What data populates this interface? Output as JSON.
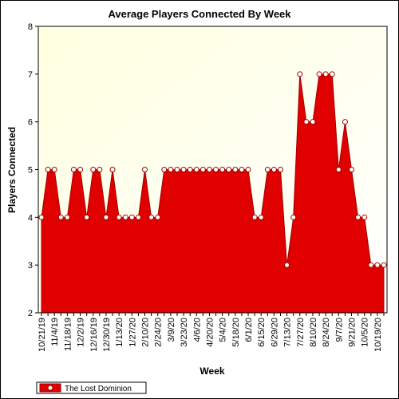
{
  "chart_data": {
    "type": "area",
    "title": "Average Players Connected By Week",
    "xlabel": "Week",
    "ylabel": "Players Connected",
    "ylim": [
      2,
      8
    ],
    "yticks": [
      2,
      3,
      4,
      5,
      6,
      7,
      8
    ],
    "grid": false,
    "legend_position": "bottom-left",
    "colors": {
      "fill": "#e00000",
      "line": "#a00000",
      "plot_bg_light": "#ffffe0",
      "marker_fill": "#ffffff"
    },
    "xtick_labels": [
      "10/21/19",
      "11/4/19",
      "11/18/19",
      "12/2/19",
      "12/16/19",
      "12/30/19",
      "1/13/20",
      "1/27/20",
      "2/10/20",
      "2/24/20",
      "3/9/20",
      "3/23/20",
      "4/6/20",
      "4/20/20",
      "5/4/20",
      "5/18/20",
      "6/1/20",
      "6/15/20",
      "6/29/20",
      "7/13/20",
      "7/27/20",
      "8/10/20",
      "8/24/20",
      "9/7/20",
      "9/21/20",
      "10/5/20",
      "10/19/20"
    ],
    "series": [
      {
        "name": "The Lost Dominion",
        "values": [
          4,
          5,
          5,
          4,
          4,
          5,
          5,
          4,
          5,
          5,
          4,
          5,
          4,
          4,
          4,
          4,
          5,
          4,
          4,
          5,
          5,
          5,
          5,
          5,
          5,
          5,
          5,
          5,
          5,
          5,
          5,
          5,
          5,
          4,
          4,
          5,
          5,
          5,
          3,
          4,
          7,
          6,
          6,
          7,
          7,
          7,
          5,
          6,
          5,
          4,
          4,
          3,
          3,
          3
        ]
      }
    ]
  }
}
